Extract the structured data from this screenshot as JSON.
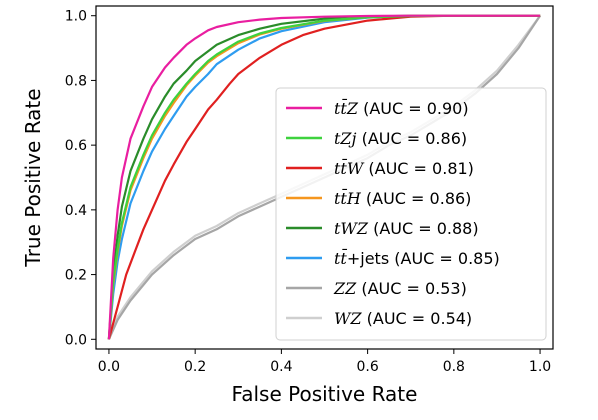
{
  "chart_data": {
    "type": "line",
    "title": "",
    "xlabel": "False Positive Rate",
    "ylabel": "True Positive Rate",
    "xlim": [
      -0.03,
      1.03
    ],
    "ylim": [
      -0.03,
      1.03
    ],
    "x_ticks": [
      "0.0",
      "0.2",
      "0.4",
      "0.6",
      "0.8",
      "1.0"
    ],
    "y_ticks": [
      "0.0",
      "0.2",
      "0.4",
      "0.6",
      "0.8",
      "1.0"
    ],
    "grid": false,
    "legend_position": "lower-right",
    "series": [
      {
        "name": "tt̄Z",
        "legend_math": "tt̄Z",
        "legend_auc": " (AUC = 0.90)",
        "color": "#e91ea0",
        "x": [
          0,
          0.01,
          0.02,
          0.03,
          0.05,
          0.08,
          0.1,
          0.13,
          0.15,
          0.18,
          0.2,
          0.23,
          0.25,
          0.3,
          0.35,
          0.4,
          0.5,
          0.6,
          0.7,
          0.8,
          0.9,
          1.0
        ],
        "y": [
          0,
          0.25,
          0.4,
          0.5,
          0.62,
          0.72,
          0.78,
          0.84,
          0.87,
          0.91,
          0.93,
          0.955,
          0.965,
          0.98,
          0.988,
          0.993,
          0.997,
          0.999,
          1.0,
          1.0,
          1.0,
          1.0
        ]
      },
      {
        "name": "tZj",
        "legend_math": "tZj",
        "legend_auc": " (AUC = 0.86)",
        "color": "#3ed23e",
        "x": [
          0,
          0.01,
          0.02,
          0.03,
          0.05,
          0.08,
          0.1,
          0.13,
          0.15,
          0.18,
          0.2,
          0.23,
          0.25,
          0.3,
          0.35,
          0.4,
          0.5,
          0.6,
          0.7,
          0.8,
          0.9,
          1.0
        ],
        "y": [
          0,
          0.18,
          0.28,
          0.36,
          0.47,
          0.57,
          0.63,
          0.7,
          0.74,
          0.79,
          0.82,
          0.86,
          0.88,
          0.92,
          0.945,
          0.962,
          0.985,
          0.995,
          0.999,
          1.0,
          1.0,
          1.0
        ]
      },
      {
        "name": "tt̄W",
        "legend_math": "tt̄W",
        "legend_auc": " (AUC = 0.81)",
        "color": "#e02020",
        "x": [
          0,
          0.02,
          0.04,
          0.06,
          0.08,
          0.1,
          0.13,
          0.15,
          0.18,
          0.2,
          0.23,
          0.25,
          0.28,
          0.3,
          0.35,
          0.4,
          0.45,
          0.5,
          0.6,
          0.7,
          0.8,
          0.9,
          1.0
        ],
        "y": [
          0,
          0.1,
          0.2,
          0.27,
          0.34,
          0.4,
          0.49,
          0.54,
          0.61,
          0.65,
          0.71,
          0.74,
          0.79,
          0.82,
          0.87,
          0.91,
          0.94,
          0.96,
          0.985,
          0.997,
          1.0,
          1.0,
          1.0
        ]
      },
      {
        "name": "tt̄H",
        "legend_math": "tt̄H",
        "legend_auc": " (AUC = 0.86)",
        "color": "#f5961e",
        "x": [
          0,
          0.01,
          0.02,
          0.03,
          0.05,
          0.08,
          0.1,
          0.13,
          0.15,
          0.18,
          0.2,
          0.23,
          0.25,
          0.3,
          0.35,
          0.4,
          0.5,
          0.6,
          0.7,
          0.8,
          0.9,
          1.0
        ],
        "y": [
          0,
          0.17,
          0.27,
          0.35,
          0.46,
          0.56,
          0.62,
          0.69,
          0.73,
          0.785,
          0.815,
          0.855,
          0.875,
          0.915,
          0.942,
          0.96,
          0.984,
          0.995,
          0.999,
          1.0,
          1.0,
          1.0
        ]
      },
      {
        "name": "tWZ",
        "legend_math": "tWZ",
        "legend_auc": " (AUC = 0.88)",
        "color": "#2a8c2a",
        "x": [
          0,
          0.01,
          0.02,
          0.03,
          0.05,
          0.08,
          0.1,
          0.13,
          0.15,
          0.18,
          0.2,
          0.23,
          0.25,
          0.3,
          0.35,
          0.4,
          0.5,
          0.6,
          0.7,
          0.8,
          0.9,
          1.0
        ],
        "y": [
          0,
          0.2,
          0.32,
          0.41,
          0.52,
          0.62,
          0.68,
          0.75,
          0.79,
          0.83,
          0.86,
          0.89,
          0.91,
          0.94,
          0.96,
          0.975,
          0.991,
          0.997,
          1.0,
          1.0,
          1.0,
          1.0
        ]
      },
      {
        "name": "tt̄+jets",
        "legend_math": "tt̄",
        "legend_auc": "+jets (AUC = 0.85)",
        "color": "#2e9cf0",
        "x": [
          0,
          0.01,
          0.02,
          0.03,
          0.05,
          0.08,
          0.1,
          0.13,
          0.15,
          0.18,
          0.2,
          0.23,
          0.25,
          0.3,
          0.35,
          0.4,
          0.5,
          0.6,
          0.7,
          0.8,
          0.9,
          1.0
        ],
        "y": [
          0,
          0.14,
          0.24,
          0.31,
          0.42,
          0.52,
          0.58,
          0.65,
          0.69,
          0.75,
          0.78,
          0.82,
          0.85,
          0.895,
          0.93,
          0.952,
          0.98,
          0.994,
          0.999,
          1.0,
          1.0,
          1.0
        ]
      },
      {
        "name": "ZZ",
        "legend_math": "ZZ",
        "legend_auc": " (AUC = 0.53)",
        "color": "#a6a6a6",
        "x": [
          0,
          0.02,
          0.05,
          0.1,
          0.15,
          0.2,
          0.25,
          0.3,
          0.35,
          0.4,
          0.45,
          0.5,
          0.55,
          0.6,
          0.65,
          0.7,
          0.75,
          0.8,
          0.85,
          0.9,
          0.95,
          1.0
        ],
        "y": [
          0,
          0.06,
          0.12,
          0.2,
          0.26,
          0.31,
          0.34,
          0.38,
          0.41,
          0.44,
          0.47,
          0.5,
          0.53,
          0.56,
          0.6,
          0.63,
          0.67,
          0.71,
          0.76,
          0.82,
          0.9,
          1.0
        ]
      },
      {
        "name": "WZ",
        "legend_math": "WZ",
        "legend_auc": " (AUC = 0.54)",
        "color": "#cfcfcf",
        "x": [
          0,
          0.02,
          0.05,
          0.1,
          0.15,
          0.2,
          0.25,
          0.3,
          0.35,
          0.4,
          0.45,
          0.5,
          0.55,
          0.6,
          0.65,
          0.7,
          0.75,
          0.8,
          0.85,
          0.9,
          0.95,
          1.0
        ],
        "y": [
          0,
          0.07,
          0.13,
          0.21,
          0.27,
          0.32,
          0.35,
          0.39,
          0.42,
          0.45,
          0.48,
          0.51,
          0.54,
          0.57,
          0.61,
          0.64,
          0.68,
          0.72,
          0.77,
          0.83,
          0.91,
          1.0
        ]
      }
    ]
  }
}
